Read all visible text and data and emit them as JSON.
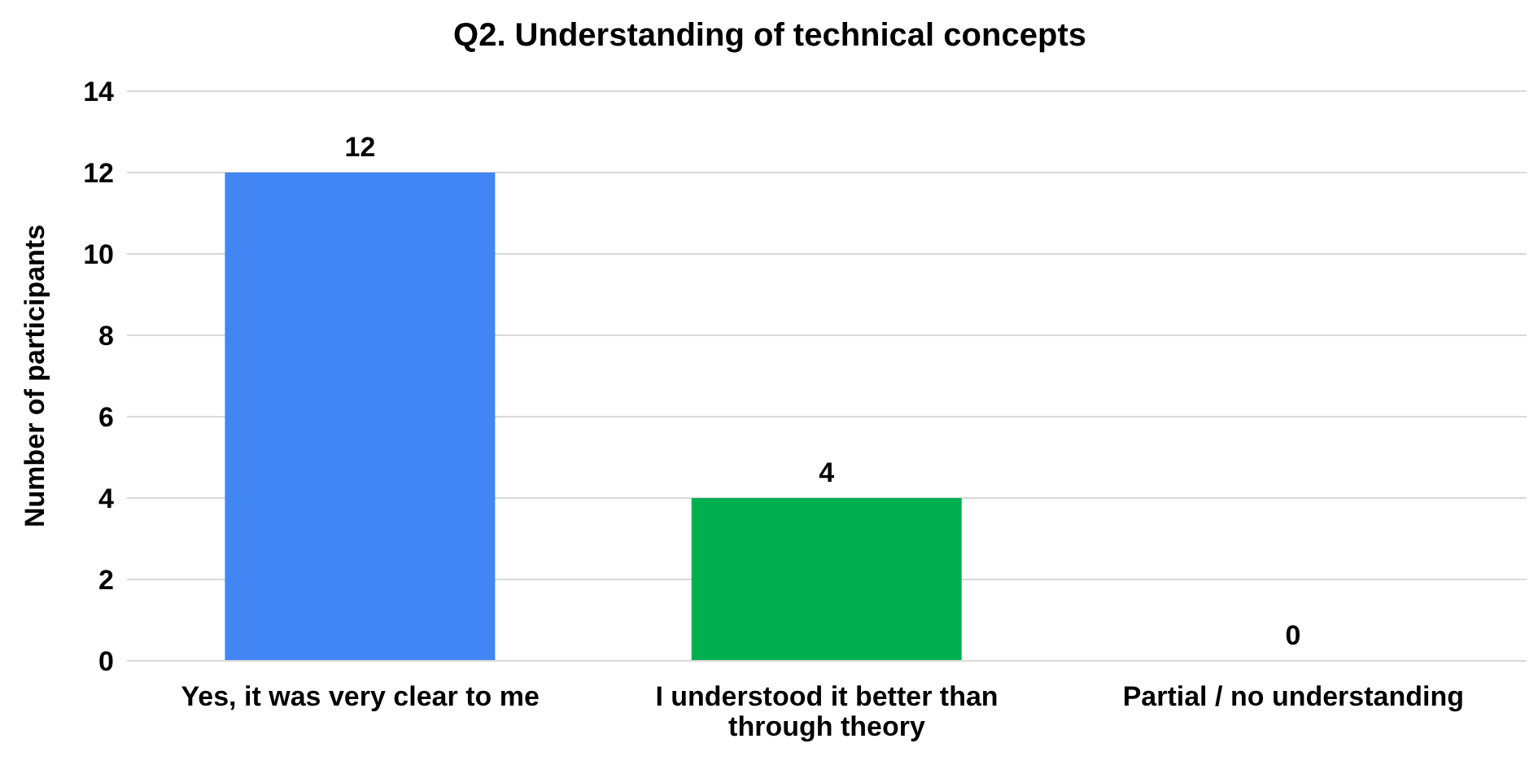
{
  "chart_data": {
    "type": "bar",
    "title": "Q2. Understanding of technical concepts",
    "ylabel": "Number of participants",
    "categories": [
      "Yes, it was very clear to me",
      "I understood it better than through theory",
      "Partial / no understanding"
    ],
    "values": [
      12,
      4,
      0
    ],
    "colors": [
      "#4285f4",
      "#00b050",
      "#00b050"
    ],
    "ylim": [
      0,
      14
    ],
    "yticks": [
      0,
      2,
      4,
      6,
      8,
      10,
      12,
      14
    ],
    "grid": "y",
    "data_labels": true,
    "legend": false
  }
}
